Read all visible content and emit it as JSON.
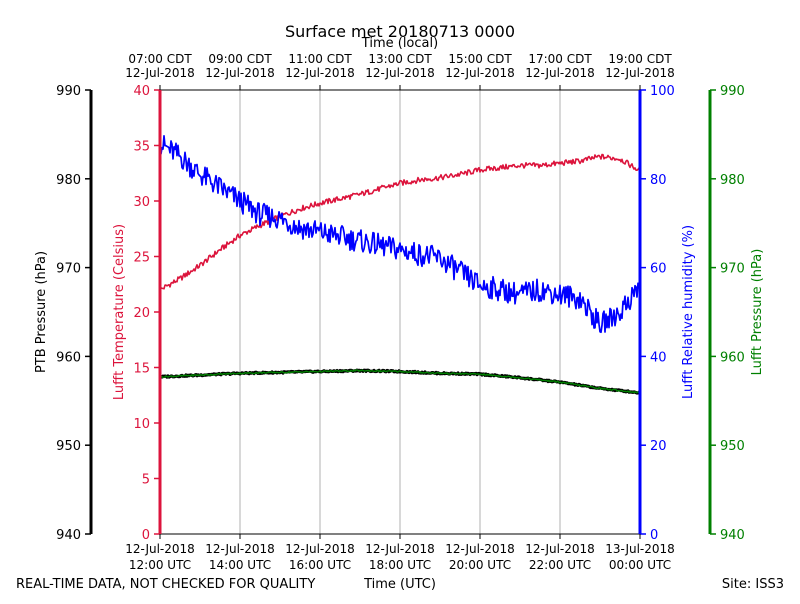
{
  "chart_data": {
    "type": "line",
    "title": "Surface met 20180713 0000",
    "top_axis_label": "Time (local)",
    "xlabel": "Time (UTC)",
    "footer_left": "REAL-TIME DATA, NOT CHECKED FOR QUALITY",
    "footer_right": "Site: ISS3",
    "x_unit": "hours after 12-Jul-2018 12:00 UTC",
    "xlim": [
      0,
      12
    ],
    "x_ticks_utc": [
      {
        "x": 0,
        "line1": "12-Jul-2018",
        "line2": "12:00 UTC"
      },
      {
        "x": 2,
        "line1": "12-Jul-2018",
        "line2": "14:00 UTC"
      },
      {
        "x": 4,
        "line1": "12-Jul-2018",
        "line2": "16:00 UTC"
      },
      {
        "x": 6,
        "line1": "12-Jul-2018",
        "line2": "18:00 UTC"
      },
      {
        "x": 8,
        "line1": "12-Jul-2018",
        "line2": "20:00 UTC"
      },
      {
        "x": 10,
        "line1": "12-Jul-2018",
        "line2": "22:00 UTC"
      },
      {
        "x": 12,
        "line1": "13-Jul-2018",
        "line2": "00:00 UTC"
      }
    ],
    "x_ticks_local": [
      {
        "x": 0,
        "line1": "07:00 CDT",
        "line2": "12-Jul-2018"
      },
      {
        "x": 2,
        "line1": "09:00 CDT",
        "line2": "12-Jul-2018"
      },
      {
        "x": 4,
        "line1": "11:00 CDT",
        "line2": "12-Jul-2018"
      },
      {
        "x": 6,
        "line1": "13:00 CDT",
        "line2": "12-Jul-2018"
      },
      {
        "x": 8,
        "line1": "15:00 CDT",
        "line2": "12-Jul-2018"
      },
      {
        "x": 10,
        "line1": "17:00 CDT",
        "line2": "12-Jul-2018"
      },
      {
        "x": 12,
        "line1": "19:00 CDT",
        "line2": "12-Jul-2018"
      }
    ],
    "axes": {
      "ptb_pressure": {
        "label": "PTB Pressure (hPa)",
        "range": [
          940,
          990
        ],
        "ticks": [
          940,
          950,
          960,
          970,
          980,
          990
        ],
        "color": "#000000"
      },
      "temperature": {
        "label": "Lufft Temperature (Celsius)",
        "range": [
          0,
          40
        ],
        "ticks": [
          0,
          5,
          10,
          15,
          20,
          25,
          30,
          35,
          40
        ],
        "color": "#dc143c"
      },
      "humidity": {
        "label": "Lufft Relative humidity (%)",
        "range": [
          0,
          100
        ],
        "ticks": [
          0,
          20,
          40,
          60,
          80,
          100
        ],
        "color": "#0000ff"
      },
      "lufft_pressure": {
        "label": "Lufft Pressure (hPa)",
        "range": [
          940,
          990
        ],
        "ticks": [
          940,
          950,
          960,
          970,
          980,
          990
        ],
        "color": "#008000"
      }
    },
    "series": [
      {
        "name": "Lufft Temperature",
        "axis": "temperature",
        "color": "#dc143c",
        "x": [
          0,
          0.5,
          1,
          1.5,
          2,
          2.5,
          3,
          3.5,
          4,
          4.5,
          5,
          5.5,
          6,
          6.5,
          7,
          7.5,
          8,
          8.5,
          9,
          9.5,
          10,
          10.5,
          11,
          11.5,
          12
        ],
        "values": [
          22.0,
          23.0,
          24.2,
          25.6,
          26.9,
          27.8,
          28.6,
          29.3,
          29.8,
          30.2,
          30.6,
          31.1,
          31.6,
          31.9,
          32.1,
          32.4,
          32.8,
          33.0,
          33.2,
          33.2,
          33.4,
          33.6,
          34.0,
          33.8,
          32.7
        ]
      },
      {
        "name": "Lufft Relative humidity",
        "axis": "humidity",
        "color": "#0000ff",
        "x": [
          0,
          0.5,
          1,
          1.5,
          2,
          2.5,
          3,
          3.5,
          4,
          4.5,
          5,
          5.5,
          6,
          6.5,
          7,
          7.5,
          8,
          8.5,
          9,
          9.5,
          10,
          10.5,
          11,
          11.5,
          12
        ],
        "values": [
          88,
          85,
          81,
          78,
          75,
          72,
          71,
          69,
          68,
          67,
          66,
          65,
          64,
          63,
          62,
          59,
          56,
          55,
          54,
          55,
          54,
          53,
          47,
          50,
          56
        ]
      },
      {
        "name": "PTB Pressure",
        "axis": "ptb_pressure",
        "color": "#000000",
        "x": [
          0,
          1,
          2,
          3,
          4,
          5,
          6,
          7,
          8,
          9,
          10,
          11,
          12
        ],
        "values": [
          957.7,
          957.9,
          958.1,
          958.2,
          958.3,
          958.4,
          958.3,
          958.1,
          958.0,
          957.6,
          957.1,
          956.4,
          955.9
        ]
      },
      {
        "name": "Lufft Pressure",
        "axis": "lufft_pressure",
        "color": "#008000",
        "x": [
          0,
          1,
          2,
          3,
          4,
          5,
          6,
          7,
          8,
          9,
          10,
          11,
          12
        ],
        "values": [
          957.7,
          957.9,
          958.1,
          958.2,
          958.3,
          958.4,
          958.3,
          958.1,
          958.0,
          957.6,
          957.1,
          956.4,
          955.9
        ]
      }
    ]
  }
}
